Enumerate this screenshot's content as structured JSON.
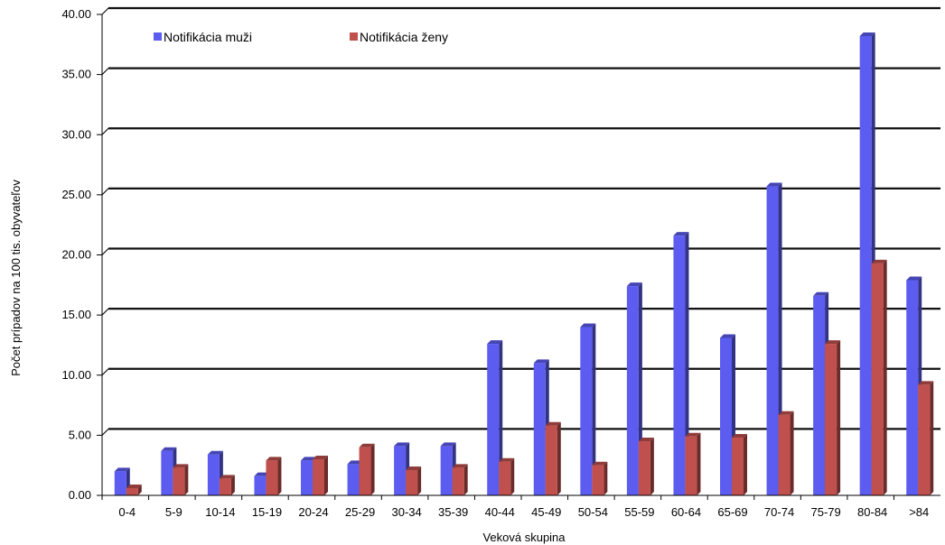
{
  "chart_data": {
    "type": "bar",
    "title": "",
    "xlabel": "Veková skupina",
    "ylabel": "Počet prípadov na 100 tis. obyvateľov",
    "ylim": [
      0,
      40
    ],
    "y_ticks": [
      "0.00",
      "5.00",
      "10.00",
      "15.00",
      "20.00",
      "25.00",
      "30.00",
      "35.00",
      "40.00"
    ],
    "grid": true,
    "legend_position": "top-left",
    "categories": [
      "0-4",
      "5-9",
      "10-14",
      "15-19",
      "20-24",
      "25-29",
      "30-34",
      "35-39",
      "40-44",
      "45-49",
      "50-54",
      "55-59",
      "60-64",
      "65-69",
      "70-74",
      "75-79",
      "80-84",
      ">84"
    ],
    "series": [
      {
        "name": "Notifikácia muži",
        "color": "#5c5cf0",
        "values": [
          2.0,
          3.7,
          3.4,
          1.6,
          2.9,
          2.6,
          4.1,
          4.1,
          12.6,
          11.0,
          14.0,
          17.4,
          21.6,
          13.1,
          25.7,
          16.6,
          38.2,
          17.9
        ]
      },
      {
        "name": "Notifikácia ženy",
        "color": "#c0504d",
        "values": [
          0.6,
          2.3,
          1.4,
          2.9,
          3.0,
          4.0,
          2.1,
          2.3,
          2.8,
          5.8,
          2.5,
          4.5,
          4.9,
          4.8,
          6.7,
          12.6,
          19.3,
          9.2
        ]
      }
    ]
  }
}
